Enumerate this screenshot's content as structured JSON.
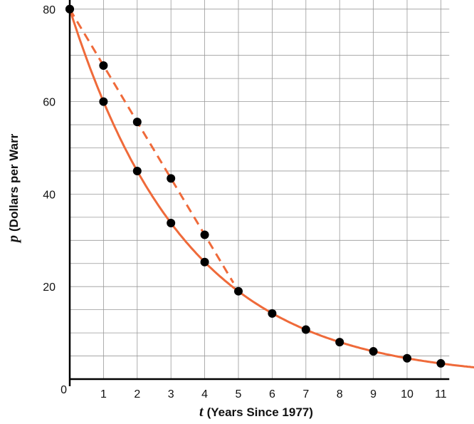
{
  "chart_data": {
    "type": "scatter",
    "title": "",
    "xlabel_var": "t",
    "xlabel": "(Years Since 1977)",
    "ylabel_var": "p",
    "ylabel": "(Dollars per Warr",
    "xlim": [
      0,
      12
    ],
    "ylim": [
      0,
      80
    ],
    "x_ticks": [
      1,
      2,
      3,
      4,
      5,
      6,
      7,
      8,
      9,
      10,
      11
    ],
    "y_ticks": [
      20,
      40,
      60,
      80
    ],
    "origin_label": "0",
    "grid": true,
    "grid_x_step": 1,
    "grid_y_step": 5,
    "series": [
      {
        "style": "solid-curve",
        "color": "#ef6a3a",
        "x": [
          0,
          1,
          2,
          3,
          4,
          5,
          6,
          7,
          8,
          9,
          10,
          11
        ],
        "y": [
          80,
          60,
          45,
          33.75,
          25.3,
          19,
          14.2,
          10.7,
          8.0,
          6.0,
          4.5,
          3.4
        ]
      },
      {
        "style": "dashed-line",
        "color": "#ef6a3a",
        "x": [
          0,
          1,
          2,
          3,
          4
        ],
        "y": [
          80,
          67.8,
          55.6,
          43.4,
          31.2
        ]
      }
    ]
  }
}
